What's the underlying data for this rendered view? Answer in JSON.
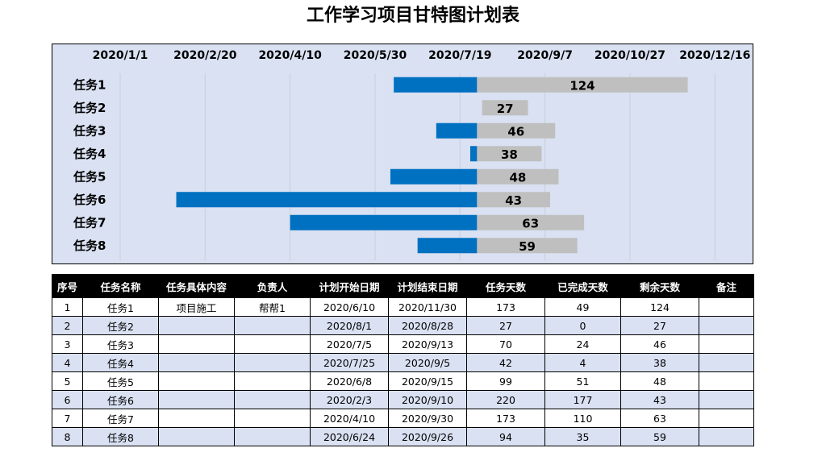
{
  "title": "工作学习项目甘特图计划表",
  "chart_data": {
    "type": "bar",
    "orientation": "horizontal",
    "stacked": true,
    "categories": [
      "任务1",
      "任务2",
      "任务3",
      "任务4",
      "任务5",
      "任务6",
      "任务7",
      "任务8"
    ],
    "series": [
      {
        "values": [
          49,
          0,
          24,
          4,
          51,
          177,
          110,
          35
        ],
        "color": "#0070c0"
      },
      {
        "values": [
          124,
          27,
          46,
          38,
          48,
          43,
          63,
          59
        ],
        "color": "#bfbfbf"
      }
    ],
    "start_dates": [
      "2020/6/10",
      "2020/8/1",
      "2020/7/5",
      "2020/7/25",
      "2020/6/8",
      "2020/2/3",
      "2020/4/10",
      "2020/6/24"
    ],
    "x_ticks": [
      "2020/1/1",
      "2020/2/20",
      "2020/4/10",
      "2020/5/30",
      "2020/7/19",
      "2020/9/7",
      "2020/10/27",
      "2020/12/16"
    ],
    "xlim": [
      "2020/1/1",
      "2021/1/1"
    ],
    "data_labels": [
      "124",
      "27",
      "46",
      "38",
      "48",
      "43",
      "63",
      "59"
    ],
    "grid": true,
    "legend": "none",
    "background": "#d9e1f2"
  },
  "table": {
    "headers": [
      "序号",
      "任务名称",
      "任务具体内容",
      "负责人",
      "计划开始日期",
      "计划结束日期",
      "任务天数",
      "已完成天数",
      "剩余天数",
      "备注"
    ],
    "rows": [
      [
        "1",
        "任务1",
        "项目施工",
        "帮帮1",
        "2020/6/10",
        "2020/11/30",
        "173",
        "49",
        "124",
        ""
      ],
      [
        "2",
        "任务2",
        "",
        "",
        "2020/8/1",
        "2020/8/28",
        "27",
        "0",
        "27",
        ""
      ],
      [
        "3",
        "任务3",
        "",
        "",
        "2020/7/5",
        "2020/9/13",
        "70",
        "24",
        "46",
        ""
      ],
      [
        "4",
        "任务4",
        "",
        "",
        "2020/7/25",
        "2020/9/5",
        "42",
        "4",
        "38",
        ""
      ],
      [
        "5",
        "任务5",
        "",
        "",
        "2020/6/8",
        "2020/9/15",
        "99",
        "51",
        "48",
        ""
      ],
      [
        "6",
        "任务6",
        "",
        "",
        "2020/2/3",
        "2020/9/10",
        "220",
        "177",
        "43",
        ""
      ],
      [
        "7",
        "任务7",
        "",
        "",
        "2020/4/10",
        "2020/9/30",
        "173",
        "110",
        "63",
        ""
      ],
      [
        "8",
        "任务8",
        "",
        "",
        "2020/6/24",
        "2020/9/26",
        "94",
        "35",
        "59",
        ""
      ]
    ]
  }
}
